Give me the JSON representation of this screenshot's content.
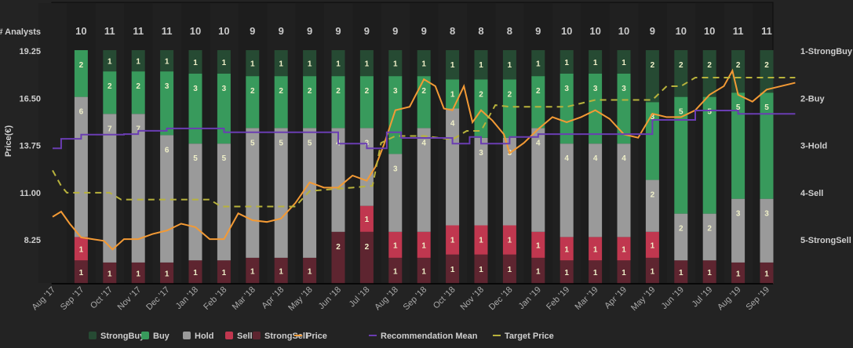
{
  "chart_data": {
    "type": "bar",
    "title": "",
    "count_label": "# Analysts",
    "ylabel": "Price(€)",
    "ylim": [
      5.5,
      19.25
    ],
    "y_ticks": [
      "19.25",
      "16.50",
      "13.75",
      "11.00",
      "8.25"
    ],
    "y_tick_values": [
      19.25,
      16.5,
      13.75,
      11.0,
      8.25
    ],
    "right_axis_ticks": [
      "1-StrongBuy",
      "2-Buy",
      "3-Hold",
      "4-Sell",
      "5-StrongSell"
    ],
    "x_labels": [
      "Aug '17",
      "Sep '17",
      "Oct '17",
      "Nov '17",
      "Dec '17",
      "Jan '18",
      "Feb '18",
      "Mar '18",
      "Apr '18",
      "May '18",
      "Jun '18",
      "Jul '18",
      "Aug '18",
      "Sep '18",
      "Oct '18",
      "Nov '18",
      "Dec '18",
      "Jan '19",
      "Feb '19",
      "Mar '19",
      "Apr '19",
      "May '19",
      "Jun '19",
      "Jul '19",
      "Aug '19",
      "Sep '19"
    ],
    "categories": [
      "Sep '17",
      "Oct '17",
      "Nov '17",
      "Dec '17",
      "Jan '18",
      "Feb '18",
      "Mar '18",
      "Apr '18",
      "May '18",
      "Jun '18",
      "Jul '18",
      "Aug '18",
      "Sep '18",
      "Oct '18",
      "Nov '18",
      "Dec '18",
      "Jan '19",
      "Feb '19",
      "Mar '19",
      "Apr '19",
      "May '19",
      "Jun '19",
      "Jul '19",
      "Aug '19",
      "Sep '19"
    ],
    "analyst_counts": [
      10,
      11,
      11,
      11,
      10,
      10,
      9,
      9,
      9,
      9,
      9,
      9,
      9,
      8,
      8,
      8,
      9,
      10,
      10,
      10,
      9,
      10,
      10,
      11,
      11
    ],
    "series": [
      {
        "name": "StrongBuy",
        "color": "#264a33",
        "values": [
          0,
          1,
          1,
          1,
          1,
          1,
          1,
          1,
          1,
          1,
          1,
          1,
          1,
          1,
          1,
          1,
          1,
          1,
          1,
          1,
          2,
          2,
          2,
          2,
          2
        ]
      },
      {
        "name": "Buy",
        "color": "#389a5c",
        "values": [
          2,
          2,
          2,
          3,
          3,
          3,
          2,
          2,
          2,
          2,
          2,
          3,
          2,
          1,
          2,
          2,
          2,
          3,
          3,
          3,
          3,
          5,
          5,
          5,
          5
        ]
      },
      {
        "name": "Hold",
        "color": "#9a9a9a",
        "values": [
          6,
          7,
          7,
          6,
          5,
          5,
          5,
          5,
          5,
          4,
          3,
          3,
          4,
          4,
          3,
          3,
          4,
          4,
          4,
          4,
          2,
          2,
          2,
          3,
          3
        ]
      },
      {
        "name": "Sell",
        "color": "#c0374f",
        "values": [
          1,
          0,
          0,
          0,
          0,
          0,
          0,
          0,
          0,
          0,
          1,
          1,
          1,
          1,
          1,
          1,
          1,
          1,
          1,
          1,
          1,
          0,
          0,
          0,
          0
        ]
      },
      {
        "name": "StrongSell",
        "color": "#5e2530",
        "values": [
          1,
          1,
          1,
          1,
          1,
          1,
          1,
          1,
          1,
          2,
          2,
          1,
          1,
          1,
          1,
          1,
          1,
          1,
          1,
          1,
          1,
          1,
          1,
          1,
          1
        ]
      }
    ],
    "lines": [
      {
        "name": "Price",
        "color": "#f39a35",
        "style": "solid",
        "x_month": [
          0,
          0.3,
          0.6,
          1,
          1.4,
          1.8,
          2.1,
          2.5,
          3,
          3.5,
          4,
          4.5,
          5,
          5.5,
          6,
          6.5,
          7,
          7.5,
          8,
          8.5,
          9,
          9.5,
          10,
          10.5,
          11,
          11.3,
          11.6,
          12,
          12.5,
          13,
          13.4,
          13.7,
          14,
          14.4,
          14.7,
          15,
          15.4,
          15.8,
          16,
          16.5,
          17,
          17.5,
          18,
          18.5,
          19,
          19.5,
          20,
          20.5,
          21,
          21.5,
          22,
          22.5,
          23,
          23.5,
          23.8,
          24,
          24.5,
          25,
          25.5,
          26
        ],
        "values": [
          9.6,
          9.9,
          9.2,
          8.4,
          8.3,
          8.2,
          7.7,
          8.3,
          8.3,
          8.6,
          8.8,
          9.2,
          9.0,
          8.3,
          8.3,
          9.8,
          9.4,
          9.3,
          9.5,
          10.4,
          11.6,
          11.3,
          11.3,
          12.0,
          11.7,
          12.5,
          13.8,
          15.8,
          16.0,
          17.6,
          17.2,
          15.9,
          15.8,
          17.2,
          15.1,
          15.8,
          15.2,
          14.4,
          13.3,
          13.9,
          14.7,
          15.4,
          15.1,
          15.4,
          15.8,
          15.3,
          14.4,
          14.2,
          15.6,
          15.4,
          15.4,
          15.8,
          16.7,
          17.2,
          18.1,
          16.7,
          16.3,
          17.0,
          17.2,
          17.4
        ]
      },
      {
        "name": "Target Price",
        "color": "#b8b23c",
        "style": "dashed",
        "x_month": [
          0,
          0.3,
          0.5,
          2,
          2.4,
          2.6,
          5.5,
          5.9,
          6,
          8.5,
          9,
          10.5,
          11.2,
          11.5,
          12,
          13,
          14,
          14.5,
          15,
          15.5,
          16,
          18,
          19,
          20,
          20.5,
          21,
          21.5,
          22,
          22.5,
          23,
          26
        ],
        "values": [
          12.3,
          11.4,
          11.0,
          11.0,
          10.6,
          10.6,
          10.6,
          10.2,
          10.2,
          10.2,
          11.1,
          11.3,
          11.4,
          13.9,
          14.3,
          14.3,
          14.1,
          14.6,
          14.6,
          16.1,
          16.0,
          16.0,
          16.4,
          16.4,
          16.4,
          16.4,
          17.2,
          17.2,
          17.7,
          17.7,
          17.7
        ]
      },
      {
        "name": "Recommendation Mean",
        "color": "#6a3db2",
        "style": "step",
        "x_month": [
          0,
          0.3,
          1,
          2.5,
          3,
          4,
          5.5,
          6,
          9.4,
          10,
          11,
          11.7,
          12.2,
          13,
          14,
          14.6,
          15,
          15.6,
          16,
          16.6,
          17,
          18,
          20.5,
          21,
          21.8,
          22.5,
          23,
          24,
          26
        ],
        "values": [
          3.06,
          2.86,
          2.77,
          2.76,
          2.69,
          2.64,
          2.64,
          2.72,
          2.72,
          2.96,
          3.06,
          2.72,
          2.84,
          2.84,
          2.96,
          2.82,
          2.96,
          2.96,
          2.82,
          2.82,
          2.76,
          2.76,
          2.76,
          2.46,
          2.46,
          2.26,
          2.26,
          2.33,
          2.33
        ]
      }
    ],
    "legend": [
      "StrongBuy",
      "Buy",
      "Hold",
      "Sell",
      "StrongSell",
      "Price",
      "Recommendation Mean",
      "Target Price"
    ],
    "legend_position": "bottom",
    "grid": false
  }
}
